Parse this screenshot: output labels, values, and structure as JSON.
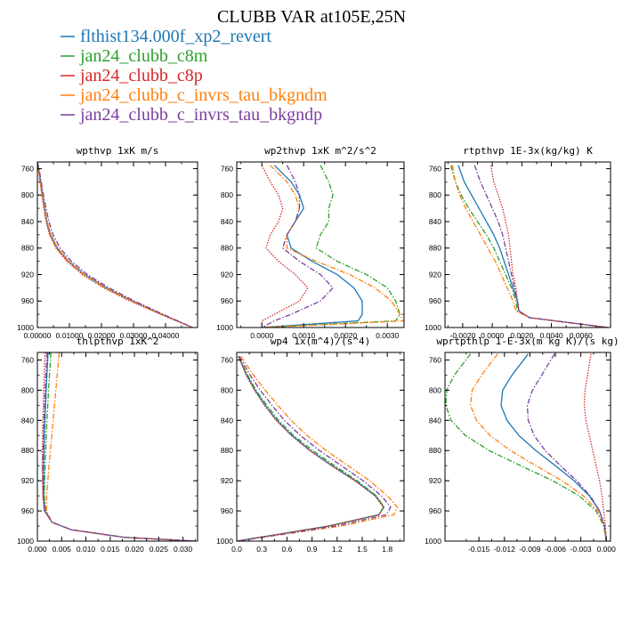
{
  "figure": {
    "title": "CLUBB VAR at105E,25N",
    "legend": [
      {
        "label": "flthist134.000f_xp2_revert",
        "color": "#1f77b4",
        "dash": "solid"
      },
      {
        "label": "jan24_clubb_c8m",
        "color": "#2ca02c",
        "dash": "dashdot"
      },
      {
        "label": "jan24_clubb_c8p",
        "color": "#d62728",
        "dash": "dot"
      },
      {
        "label": "jan24_clubb_c_invrs_tau_bkgndm",
        "color": "#ff7f0e",
        "dash": "dashdot"
      },
      {
        "label": "jan24_clubb_c_invrs_tau_bkgndp",
        "color": "#7b3f9e",
        "dash": "dashdot"
      }
    ]
  },
  "chart_data": [
    {
      "type": "line",
      "title": "wpthvp  1xK m/s",
      "xlim": [
        0,
        0.05
      ],
      "ylim": [
        1000,
        750
      ],
      "xticks": [
        0,
        0.01,
        0.02,
        0.03,
        0.04
      ],
      "xticklabels": [
        "0.00000",
        "0.01000",
        "0.02000",
        "0.03000",
        "0.04000"
      ],
      "yticks": [
        760,
        800,
        840,
        880,
        920,
        960,
        1000
      ],
      "yticklabels": [
        "760",
        "800",
        "840",
        "880",
        "920",
        "960",
        "1000"
      ],
      "y": [
        750,
        760,
        780,
        800,
        820,
        840,
        860,
        880,
        900,
        920,
        940,
        960,
        980,
        1000
      ],
      "series": [
        {
          "x": [
            0.0,
            0.0004,
            0.001,
            0.0016,
            0.0023,
            0.003,
            0.0042,
            0.0063,
            0.0098,
            0.0148,
            0.0215,
            0.0297,
            0.0389,
            0.0484
          ]
        },
        {
          "x": [
            0.0,
            0.0003,
            0.0009,
            0.0015,
            0.0021,
            0.0028,
            0.004,
            0.006,
            0.0095,
            0.0145,
            0.0212,
            0.0294,
            0.0387,
            0.0484
          ]
        },
        {
          "x": [
            0.0,
            0.0003,
            0.0008,
            0.0014,
            0.002,
            0.0027,
            0.0038,
            0.0058,
            0.0092,
            0.014,
            0.0206,
            0.0289,
            0.0384,
            0.0484
          ]
        },
        {
          "x": [
            0.0,
            0.0003,
            0.0009,
            0.0015,
            0.0022,
            0.003,
            0.0042,
            0.0063,
            0.0097,
            0.0147,
            0.0214,
            0.0296,
            0.0388,
            0.0484
          ]
        },
        {
          "x": [
            0.0,
            0.0005,
            0.0012,
            0.0019,
            0.0027,
            0.0036,
            0.0049,
            0.0071,
            0.0106,
            0.0156,
            0.0223,
            0.0303,
            0.0392,
            0.0484
          ]
        }
      ]
    },
    {
      "type": "line",
      "title": "wp2thvp  1xK m^2/s^2",
      "xlim": [
        -0.0006,
        0.0034
      ],
      "ylim": [
        1000,
        750
      ],
      "xticks": [
        0,
        0.001,
        0.002,
        0.003
      ],
      "xticklabels": [
        "0.0000",
        "0.0010",
        "0.0020",
        "0.0030"
      ],
      "yticks": [
        760,
        800,
        840,
        880,
        920,
        960,
        1000
      ],
      "yticklabels": [
        "760",
        "800",
        "840",
        "880",
        "920",
        "960",
        "1000"
      ],
      "y": [
        755,
        780,
        800,
        820,
        840,
        860,
        880,
        900,
        920,
        940,
        960,
        980,
        990,
        1000
      ],
      "series": [
        {
          "x": [
            0.0003,
            0.0007,
            0.0009,
            0.001,
            0.0008,
            0.0006,
            0.0007,
            0.0012,
            0.0018,
            0.0022,
            0.0024,
            0.0024,
            0.0023,
            0.0
          ]
        },
        {
          "x": [
            0.0014,
            0.0016,
            0.0017,
            0.0016,
            0.0016,
            0.0014,
            0.0013,
            0.0018,
            0.0025,
            0.003,
            0.0032,
            0.0033,
            0.0032,
            0.0
          ]
        },
        {
          "x": [
            0.0,
            0.0002,
            0.0004,
            0.0005,
            0.0004,
            0.0002,
            0.0001,
            0.0004,
            0.0008,
            0.0011,
            0.0009,
            0.0003,
            0.0,
            0.0
          ]
        },
        {
          "x": [
            0.0002,
            0.0006,
            0.0008,
            0.0009,
            0.0008,
            0.0006,
            0.0006,
            0.0013,
            0.0021,
            0.0027,
            0.0031,
            0.0033,
            0.0034,
            0.0
          ]
        },
        {
          "x": [
            0.0006,
            0.0008,
            0.0009,
            0.0009,
            0.0008,
            0.0006,
            0.0005,
            0.0009,
            0.0014,
            0.0017,
            0.0014,
            0.0007,
            0.0003,
            0.0
          ]
        }
      ]
    },
    {
      "type": "line",
      "title": "rtpthvp  1E-3x(kg/kg) K",
      "xlim": [
        -0.0032,
        0.008
      ],
      "ylim": [
        1000,
        750
      ],
      "xticks": [
        -0.002,
        0,
        0.002,
        0.004,
        0.006
      ],
      "xticklabels": [
        "-0.0020",
        "0.0000",
        "0.0020",
        "0.0040",
        "0.0060"
      ],
      "yticks": [
        760,
        800,
        840,
        880,
        920,
        960,
        1000
      ],
      "yticklabels": [
        "760",
        "800",
        "840",
        "880",
        "920",
        "960",
        "1000"
      ],
      "y": [
        755,
        780,
        800,
        820,
        840,
        860,
        880,
        900,
        920,
        940,
        960,
        975,
        985,
        1000
      ],
      "series": [
        {
          "x": [
            -0.0023,
            -0.0019,
            -0.0014,
            -0.0009,
            -0.0004,
            0.0001,
            0.0005,
            0.0008,
            0.0011,
            0.0014,
            0.0017,
            0.0018,
            0.0025,
            0.0078
          ]
        },
        {
          "x": [
            -0.0028,
            -0.0025,
            -0.0021,
            -0.0016,
            -0.001,
            -0.0004,
            0.0001,
            0.0005,
            0.0009,
            0.0013,
            0.0016,
            0.0017,
            0.0025,
            0.0078
          ]
        },
        {
          "x": [
            -0.0001,
            0.0001,
            0.0004,
            0.0007,
            0.0009,
            0.0011,
            0.0012,
            0.0013,
            0.0014,
            0.0016,
            0.0017,
            0.0018,
            0.0025,
            0.0078
          ]
        },
        {
          "x": [
            -0.0027,
            -0.0025,
            -0.0022,
            -0.0018,
            -0.0013,
            -0.0008,
            -0.0003,
            0.0002,
            0.0006,
            0.001,
            0.0014,
            0.0016,
            0.0025,
            0.0078
          ]
        },
        {
          "x": [
            -0.0012,
            -0.0008,
            -0.0004,
            0.0,
            0.0004,
            0.0007,
            0.0009,
            0.0011,
            0.0013,
            0.0015,
            0.0017,
            0.0018,
            0.0025,
            0.0078
          ]
        }
      ]
    },
    {
      "type": "line",
      "title": "thlpthvp  1xK^2",
      "xlim": [
        0,
        0.033
      ],
      "ylim": [
        1000,
        750
      ],
      "xticks": [
        0,
        0.005,
        0.01,
        0.015,
        0.02,
        0.025,
        0.03
      ],
      "xticklabels": [
        "0.000",
        "0.005",
        "0.010",
        "0.015",
        "0.020",
        "0.025",
        "0.030"
      ],
      "yticks": [
        760,
        800,
        840,
        880,
        920,
        960,
        1000
      ],
      "yticklabels": [
        "760",
        "800",
        "840",
        "880",
        "920",
        "960",
        "1000"
      ],
      "y": [
        750,
        800,
        850,
        900,
        940,
        960,
        975,
        985,
        995,
        1000
      ],
      "series": [
        {
          "x": [
            0.0022,
            0.0018,
            0.0015,
            0.0013,
            0.0013,
            0.0016,
            0.003,
            0.007,
            0.018,
            0.0325
          ]
        },
        {
          "x": [
            0.0028,
            0.0023,
            0.0019,
            0.0016,
            0.0014,
            0.0017,
            0.003,
            0.007,
            0.018,
            0.0325
          ]
        },
        {
          "x": [
            0.0016,
            0.0013,
            0.0011,
            0.001,
            0.0011,
            0.0014,
            0.003,
            0.007,
            0.018,
            0.0325
          ]
        },
        {
          "x": [
            0.0045,
            0.0038,
            0.0031,
            0.0024,
            0.0019,
            0.0019,
            0.003,
            0.007,
            0.018,
            0.0325
          ]
        },
        {
          "x": [
            0.002,
            0.0016,
            0.0013,
            0.0011,
            0.0012,
            0.0015,
            0.003,
            0.007,
            0.018,
            0.0325
          ]
        }
      ]
    },
    {
      "type": "line",
      "title": "wp4  1x(m^4)/(s^4)",
      "xlim": [
        0,
        2.0
      ],
      "ylim": [
        1000,
        750
      ],
      "xticks": [
        0,
        0.3,
        0.6,
        0.9,
        1.2,
        1.5,
        1.8
      ],
      "xticklabels": [
        "0.0",
        "0.3",
        "0.6",
        "0.9",
        "1.2",
        "1.5",
        "1.8"
      ],
      "yticks": [
        760,
        800,
        840,
        880,
        920,
        960,
        1000
      ],
      "yticklabels": [
        "760",
        "800",
        "840",
        "880",
        "920",
        "960",
        "1000"
      ],
      "y": [
        755,
        780,
        800,
        820,
        840,
        860,
        880,
        900,
        920,
        940,
        955,
        965,
        980,
        1000
      ],
      "series": [
        {
          "x": [
            0.02,
            0.12,
            0.22,
            0.34,
            0.48,
            0.66,
            0.88,
            1.14,
            1.42,
            1.66,
            1.76,
            1.7,
            1.1,
            0.0
          ]
        },
        {
          "x": [
            0.02,
            0.13,
            0.23,
            0.36,
            0.5,
            0.68,
            0.91,
            1.17,
            1.44,
            1.67,
            1.76,
            1.7,
            1.1,
            0.0
          ]
        },
        {
          "x": [
            0.02,
            0.11,
            0.21,
            0.33,
            0.47,
            0.65,
            0.87,
            1.13,
            1.41,
            1.65,
            1.75,
            1.7,
            1.1,
            0.0
          ]
        },
        {
          "x": [
            0.05,
            0.2,
            0.34,
            0.49,
            0.65,
            0.84,
            1.07,
            1.33,
            1.59,
            1.8,
            1.92,
            1.88,
            1.25,
            0.0
          ]
        },
        {
          "x": [
            0.03,
            0.16,
            0.28,
            0.42,
            0.57,
            0.76,
            0.99,
            1.25,
            1.51,
            1.73,
            1.84,
            1.79,
            1.18,
            0.0
          ]
        }
      ]
    },
    {
      "type": "line",
      "title": "wprtpthlp  1-E-3x(m kg K)/(s kg)",
      "xlim": [
        -0.019,
        0.0005
      ],
      "ylim": [
        1000,
        750
      ],
      "xticks": [
        -0.015,
        -0.012,
        -0.009,
        -0.006,
        -0.003,
        0
      ],
      "xticklabels": [
        "-0.015",
        "-0.012",
        "-0.009",
        "-0.006",
        "-0.003",
        "0.000"
      ],
      "yticks": [
        760,
        800,
        840,
        880,
        920,
        960,
        1000
      ],
      "yticklabels": [
        "760",
        "800",
        "840",
        "880",
        "920",
        "960",
        "1000"
      ],
      "y": [
        752,
        780,
        800,
        820,
        840,
        860,
        880,
        900,
        920,
        940,
        960,
        980,
        1000
      ],
      "series": [
        {
          "x": [
            -0.0092,
            -0.0111,
            -0.0122,
            -0.0124,
            -0.0117,
            -0.0103,
            -0.0083,
            -0.006,
            -0.0038,
            -0.002,
            -0.0008,
            -0.0002,
            0.0
          ]
        },
        {
          "x": [
            -0.016,
            -0.0179,
            -0.0188,
            -0.0189,
            -0.0183,
            -0.0166,
            -0.0138,
            -0.0101,
            -0.0063,
            -0.0032,
            -0.0012,
            -0.0003,
            0.0
          ]
        },
        {
          "x": [
            -0.0018,
            -0.0022,
            -0.0025,
            -0.0026,
            -0.0024,
            -0.002,
            -0.0016,
            -0.0012,
            -0.0008,
            -0.0005,
            -0.0003,
            -0.0001,
            0.0
          ]
        },
        {
          "x": [
            -0.0128,
            -0.0147,
            -0.0158,
            -0.016,
            -0.0153,
            -0.0137,
            -0.0113,
            -0.0083,
            -0.0052,
            -0.0027,
            -0.001,
            -0.0002,
            0.0
          ]
        },
        {
          "x": [
            -0.0061,
            -0.0076,
            -0.0087,
            -0.0093,
            -0.0092,
            -0.0085,
            -0.0072,
            -0.0054,
            -0.0035,
            -0.0019,
            -0.0008,
            -0.0002,
            0.0
          ]
        }
      ]
    }
  ]
}
